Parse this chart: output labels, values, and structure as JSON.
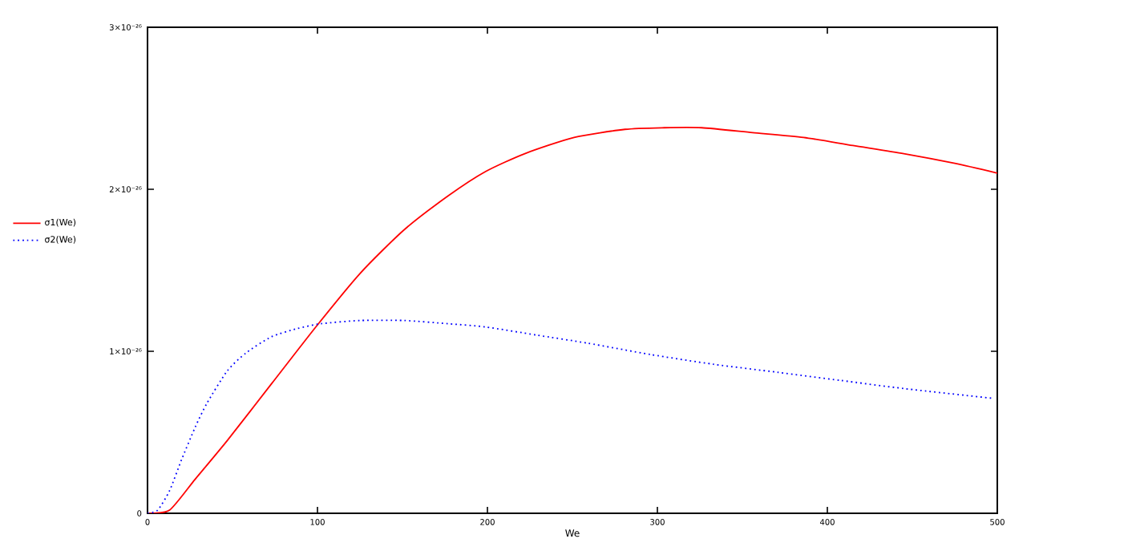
{
  "chart_data": {
    "type": "line",
    "xlabel": "We",
    "xlim": [
      0,
      500
    ],
    "xticks": [
      0,
      100,
      200,
      300,
      400,
      500
    ],
    "ylim": [
      0,
      3e-26
    ],
    "yticks": [
      0,
      {
        "value": 1e-26,
        "label": "1×10⁻²⁶"
      },
      {
        "value": 2e-26,
        "label": "2×10⁻²⁶"
      },
      {
        "value": 3e-26,
        "label": "3×10⁻²⁶"
      }
    ],
    "grid": false,
    "legend": "left",
    "marker": "none",
    "series": [
      {
        "name": "σ1(We)",
        "color": "#ff0000",
        "line_style": "solid",
        "x": [
          0,
          13,
          28,
          47,
          73,
          99,
          125,
          151,
          177,
          199,
          222,
          251,
          281,
          304,
          326,
          356,
          386,
          415,
          445,
          475,
          500
        ],
        "values": [
          0,
          2e-28,
          2.1e-27,
          4.5e-27,
          8e-27,
          1.15e-26,
          1.48e-26,
          1.75e-26,
          1.96e-26,
          2.11e-26,
          2.22e-26,
          2.32e-26,
          2.37e-26,
          2.38e-26,
          2.38e-26,
          2.35e-26,
          2.32e-26,
          2.27e-26,
          2.22e-26,
          2.16e-26,
          2.1e-26
        ]
      },
      {
        "name": "σ2(We)",
        "color": "#0000ff",
        "line_style": "dotted",
        "x": [
          0,
          6,
          13,
          20,
          28,
          35,
          47,
          58,
          73,
          88,
          102,
          125,
          151,
          177,
          199,
          229,
          259,
          296,
          333,
          371,
          408,
          445,
          497
        ],
        "values": [
          0,
          2e-28,
          1.4e-27,
          3.3e-27,
          5.3e-27,
          6.8e-27,
          8.8e-27,
          9.9e-27,
          1.09e-26,
          1.14e-26,
          1.17e-26,
          1.19e-26,
          1.19e-26,
          1.17e-26,
          1.15e-26,
          1.1e-26,
          1.05e-26,
          9.8e-27,
          9.2e-27,
          8.7e-27,
          8.2e-27,
          7.7e-27,
          7.1e-27
        ]
      }
    ]
  }
}
